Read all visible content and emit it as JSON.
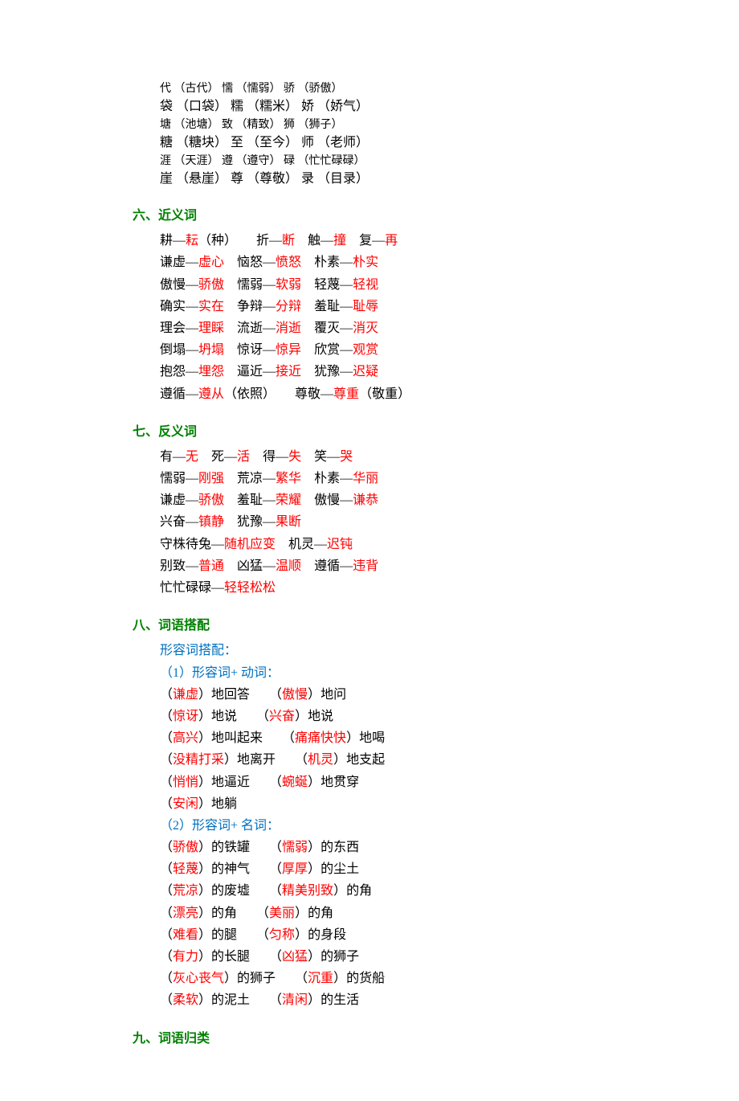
{
  "top_block": {
    "rows": [
      {
        "c1": "代",
        "p1": "（古代）",
        "c2": "懦",
        "p2": "（懦弱）",
        "c3": "骄",
        "p3": "（骄傲）",
        "big": false
      },
      {
        "c1": "袋",
        "p1": "（口袋）",
        "c2": "糯",
        "p2": "（糯米）",
        "c3": "娇",
        "p3": "（娇气）",
        "big": true
      },
      {
        "c1": "塘",
        "p1": "（池塘）",
        "c2": "致",
        "p2": "（精致）",
        "c3": "狮",
        "p3": "（狮子）",
        "big": false
      },
      {
        "c1": "糖",
        "p1": "（糖块）",
        "c2": "至",
        "p2": "（至今）",
        "c3": "师",
        "p3": "（老师）",
        "big": true
      },
      {
        "c1": "涯",
        "p1": "（天涯）",
        "c2": "遵",
        "p2": "（遵守）",
        "c3": "碌",
        "p3": "（忙忙碌碌）",
        "big": false
      },
      {
        "c1": "崖",
        "p1": "（悬崖）",
        "c2": "尊",
        "p2": "（尊敬）",
        "c3": "录",
        "p3": "（目录）",
        "big": true
      }
    ]
  },
  "sections": {
    "six": {
      "title": "六、近义词",
      "lines": [
        [
          [
            "b",
            "耕—"
          ],
          [
            "r",
            "耘"
          ],
          [
            "b",
            "（种）　　折—"
          ],
          [
            "r",
            "断"
          ],
          [
            "b",
            "　触—"
          ],
          [
            "r",
            "撞"
          ],
          [
            "b",
            "　复—"
          ],
          [
            "r",
            "再"
          ]
        ],
        [
          [
            "b",
            "谦虚—"
          ],
          [
            "r",
            "虚心"
          ],
          [
            "b",
            "　恼怒—"
          ],
          [
            "r",
            "愤怒"
          ],
          [
            "b",
            "　朴素—"
          ],
          [
            "r",
            "朴实"
          ]
        ],
        [
          [
            "b",
            "傲慢—"
          ],
          [
            "r",
            "骄傲"
          ],
          [
            "b",
            "　懦弱—"
          ],
          [
            "r",
            "软弱"
          ],
          [
            "b",
            "　轻蔑—"
          ],
          [
            "r",
            "轻视"
          ]
        ],
        [
          [
            "b",
            "确实—"
          ],
          [
            "r",
            "实在"
          ],
          [
            "b",
            "　争辩—"
          ],
          [
            "r",
            "分辩"
          ],
          [
            "b",
            "　羞耻—"
          ],
          [
            "r",
            "耻辱"
          ]
        ],
        [
          [
            "b",
            "理会—"
          ],
          [
            "r",
            "理睬"
          ],
          [
            "b",
            "　流逝—"
          ],
          [
            "r",
            "消逝"
          ],
          [
            "b",
            "　覆灭—"
          ],
          [
            "r",
            "消灭"
          ]
        ],
        [
          [
            "b",
            "倒塌—"
          ],
          [
            "r",
            "坍塌"
          ],
          [
            "b",
            "　惊讶—"
          ],
          [
            "r",
            "惊异"
          ],
          [
            "b",
            "　欣赏—"
          ],
          [
            "r",
            "观赏"
          ]
        ],
        [
          [
            "b",
            "抱怨—"
          ],
          [
            "r",
            "埋怨"
          ],
          [
            "b",
            "　逼近—"
          ],
          [
            "r",
            "接近"
          ],
          [
            "b",
            "　犹豫—"
          ],
          [
            "r",
            "迟疑"
          ]
        ],
        [
          [
            "b",
            "遵循—"
          ],
          [
            "r",
            "遵从"
          ],
          [
            "b",
            "（依照）　　尊敬—"
          ],
          [
            "r",
            "尊重"
          ],
          [
            "b",
            "（敬重）"
          ]
        ]
      ]
    },
    "seven": {
      "title": "七、反义词",
      "lines": [
        [
          [
            "b",
            "有—"
          ],
          [
            "r",
            "无"
          ],
          [
            "b",
            "　死—"
          ],
          [
            "r",
            "活"
          ],
          [
            "b",
            "　得—"
          ],
          [
            "r",
            "失"
          ],
          [
            "b",
            "　笑—"
          ],
          [
            "r",
            "哭"
          ]
        ],
        [
          [
            "b",
            "懦弱—"
          ],
          [
            "r",
            "刚强"
          ],
          [
            "b",
            "　荒凉—"
          ],
          [
            "r",
            "繁华"
          ],
          [
            "b",
            "　朴素—"
          ],
          [
            "r",
            "华丽"
          ]
        ],
        [
          [
            "b",
            "谦虚—"
          ],
          [
            "r",
            "骄傲"
          ],
          [
            "b",
            "　羞耻—"
          ],
          [
            "r",
            "荣耀"
          ],
          [
            "b",
            "　傲慢—"
          ],
          [
            "r",
            "谦恭"
          ]
        ],
        [
          [
            "b",
            "兴奋—"
          ],
          [
            "r",
            "镇静"
          ],
          [
            "b",
            "　犹豫—"
          ],
          [
            "r",
            "果断"
          ]
        ],
        [
          [
            "b",
            "守株待兔—"
          ],
          [
            "r",
            "随机应变"
          ],
          [
            "b",
            "　机灵—"
          ],
          [
            "r",
            "迟钝"
          ]
        ],
        [
          [
            "b",
            "别致—"
          ],
          [
            "r",
            "普通"
          ],
          [
            "b",
            "　凶猛—"
          ],
          [
            "r",
            "温顺"
          ],
          [
            "b",
            "　遵循—"
          ],
          [
            "r",
            "违背"
          ]
        ],
        [
          [
            "b",
            "忙忙碌碌—"
          ],
          [
            "r",
            "轻轻松松"
          ]
        ]
      ]
    },
    "eight": {
      "title": "八、词语搭配",
      "sub1": "形容词搭配：",
      "sub2": "（1）形容词+ 动词：",
      "group1": [
        [
          [
            "b",
            "（"
          ],
          [
            "r",
            "谦虚"
          ],
          [
            "b",
            "）地回答　　（"
          ],
          [
            "r",
            "傲慢"
          ],
          [
            "b",
            "）地问"
          ]
        ],
        [
          [
            "b",
            "（"
          ],
          [
            "r",
            "惊讶"
          ],
          [
            "b",
            "）地说　　（"
          ],
          [
            "r",
            "兴奋"
          ],
          [
            "b",
            "）地说"
          ]
        ],
        [
          [
            "b",
            "（"
          ],
          [
            "r",
            "高兴"
          ],
          [
            "b",
            "）地叫起来　　（"
          ],
          [
            "r",
            "痛痛快快"
          ],
          [
            "b",
            "）地喝"
          ]
        ],
        [
          [
            "b",
            "（"
          ],
          [
            "r",
            "没精打采"
          ],
          [
            "b",
            "）地离开　　（"
          ],
          [
            "r",
            "机灵"
          ],
          [
            "b",
            "）地支起"
          ]
        ],
        [
          [
            "b",
            "（"
          ],
          [
            "r",
            "悄悄"
          ],
          [
            "b",
            "）地逼近　　（"
          ],
          [
            "r",
            "蜿蜒"
          ],
          [
            "b",
            "）地贯穿"
          ]
        ],
        [
          [
            "b",
            "（"
          ],
          [
            "r",
            "安闲"
          ],
          [
            "b",
            "）地躺"
          ]
        ]
      ],
      "sub3": "（2）形容词+ 名词：",
      "group2": [
        [
          [
            "b",
            "（"
          ],
          [
            "r",
            "骄傲"
          ],
          [
            "b",
            "）的铁罐　　（"
          ],
          [
            "r",
            "懦弱"
          ],
          [
            "b",
            "）的东西"
          ]
        ],
        [
          [
            "b",
            "（"
          ],
          [
            "r",
            "轻蔑"
          ],
          [
            "b",
            "）的神气　　（"
          ],
          [
            "r",
            "厚厚"
          ],
          [
            "b",
            "）的尘土"
          ]
        ],
        [
          [
            "b",
            "（"
          ],
          [
            "r",
            "荒凉"
          ],
          [
            "b",
            "）的废墟　　（"
          ],
          [
            "r",
            "精美别致"
          ],
          [
            "b",
            "）的角"
          ]
        ],
        [
          [
            "b",
            "（"
          ],
          [
            "r",
            "漂亮"
          ],
          [
            "b",
            "）的角　　（"
          ],
          [
            "r",
            "美丽"
          ],
          [
            "b",
            "）的角"
          ]
        ],
        [
          [
            "b",
            "（"
          ],
          [
            "r",
            "难看"
          ],
          [
            "b",
            "）的腿　　（"
          ],
          [
            "r",
            "匀称"
          ],
          [
            "b",
            "）的身段"
          ]
        ],
        [
          [
            "b",
            "（"
          ],
          [
            "r",
            "有力"
          ],
          [
            "b",
            "）的长腿　　（"
          ],
          [
            "r",
            "凶猛"
          ],
          [
            "b",
            "）的狮子"
          ]
        ],
        [
          [
            "b",
            "（"
          ],
          [
            "r",
            "灰心丧气"
          ],
          [
            "b",
            "）的狮子　　（"
          ],
          [
            "r",
            "沉重"
          ],
          [
            "b",
            "）的货船"
          ]
        ],
        [
          [
            "b",
            "（"
          ],
          [
            "r",
            "柔软"
          ],
          [
            "b",
            "）的泥土　　（"
          ],
          [
            "r",
            "清闲"
          ],
          [
            "b",
            "）的生活"
          ]
        ]
      ]
    },
    "nine": {
      "title": "九、词语归类"
    }
  }
}
